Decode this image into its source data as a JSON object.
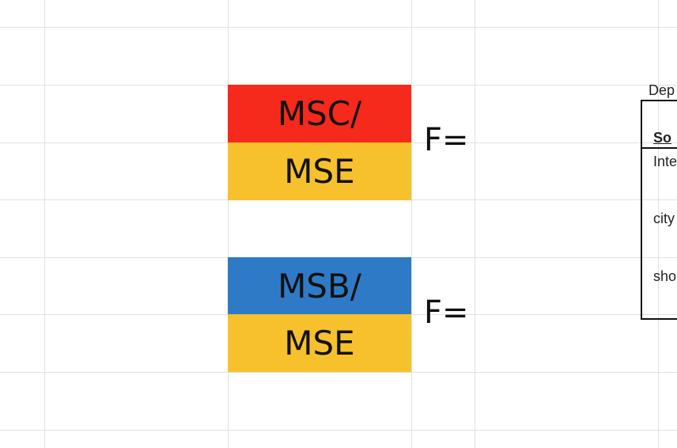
{
  "formula_blocks": [
    {
      "numerator": "MSC/",
      "denominator": "MSE",
      "numerator_color": "#f5291c",
      "denominator_color": "#f6c12c",
      "equals_label": "F="
    },
    {
      "numerator": "MSB/",
      "denominator": "MSE",
      "numerator_color": "#2f7ac6",
      "denominator_color": "#f6c12c",
      "equals_label": "F="
    }
  ],
  "table": {
    "caption": "Dep",
    "header": "So",
    "rows": [
      "Inte",
      "city",
      "sho"
    ]
  }
}
